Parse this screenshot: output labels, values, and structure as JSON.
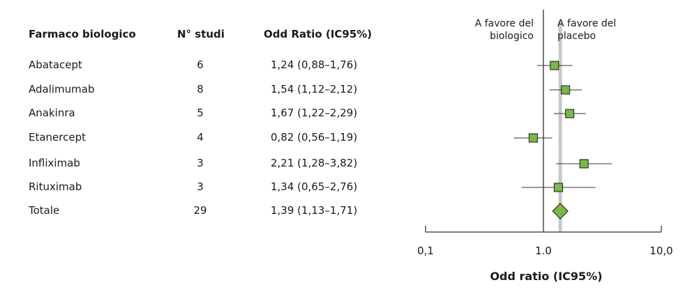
{
  "table": {
    "headers": {
      "drug": "Farmaco biologico",
      "studies": "N° studi",
      "or": "Odd Ratio (IC95%)"
    },
    "rows": [
      {
        "drug": "Abatacept",
        "studies": "6",
        "or": "1,24 (0,88–1,76)"
      },
      {
        "drug": "Adalimumab",
        "studies": "8",
        "or": "1,54 (1,12–2,12)"
      },
      {
        "drug": "Anakinra",
        "studies": "5",
        "or": "1,67 (1,22–2,29)"
      },
      {
        "drug": "Etanercept",
        "studies": "4",
        "or": "0,82 (0,56–1,19)"
      },
      {
        "drug": "Infliximab",
        "studies": "3",
        "or": "2,21 (1,28–3,82)"
      },
      {
        "drug": "Rituximab",
        "studies": "3",
        "or": "1,34 (0,65–2,76)"
      },
      {
        "drug": "Totale",
        "studies": "29",
        "or": "1,39 (1,13–1,71)"
      }
    ]
  },
  "chart_data": {
    "type": "forest",
    "scale": "log",
    "xlim": [
      0.1,
      10.0
    ],
    "xlabel": "Odd ratio (IC95%)",
    "xticks": [
      {
        "value": 0.1,
        "label": "0,1"
      },
      {
        "value": 1.0,
        "label": "1.0"
      },
      {
        "value": 10.0,
        "label": "10,0"
      }
    ],
    "reference_line": 1.0,
    "pooled_line": 1.39,
    "left_annotation": [
      "A favore del",
      "biologico"
    ],
    "right_annotation": [
      "A favore del",
      "placebo"
    ],
    "studies": [
      {
        "label": "Abatacept",
        "or": 1.24,
        "lo": 0.88,
        "hi": 1.76
      },
      {
        "label": "Adalimumab",
        "or": 1.54,
        "lo": 1.12,
        "hi": 2.12
      },
      {
        "label": "Anakinra",
        "or": 1.67,
        "lo": 1.22,
        "hi": 2.29
      },
      {
        "label": "Etanercept",
        "or": 0.82,
        "lo": 0.56,
        "hi": 1.19
      },
      {
        "label": "Infliximab",
        "or": 2.21,
        "lo": 1.28,
        "hi": 3.82
      },
      {
        "label": "Rituximab",
        "or": 1.34,
        "lo": 0.65,
        "hi": 2.76
      }
    ],
    "summary": {
      "label": "Totale",
      "or": 1.39,
      "lo": 1.13,
      "hi": 1.71
    },
    "colors": {
      "marker": "#7ab648",
      "pooled_line": "#c8c8c8",
      "axis": "#555555"
    }
  }
}
